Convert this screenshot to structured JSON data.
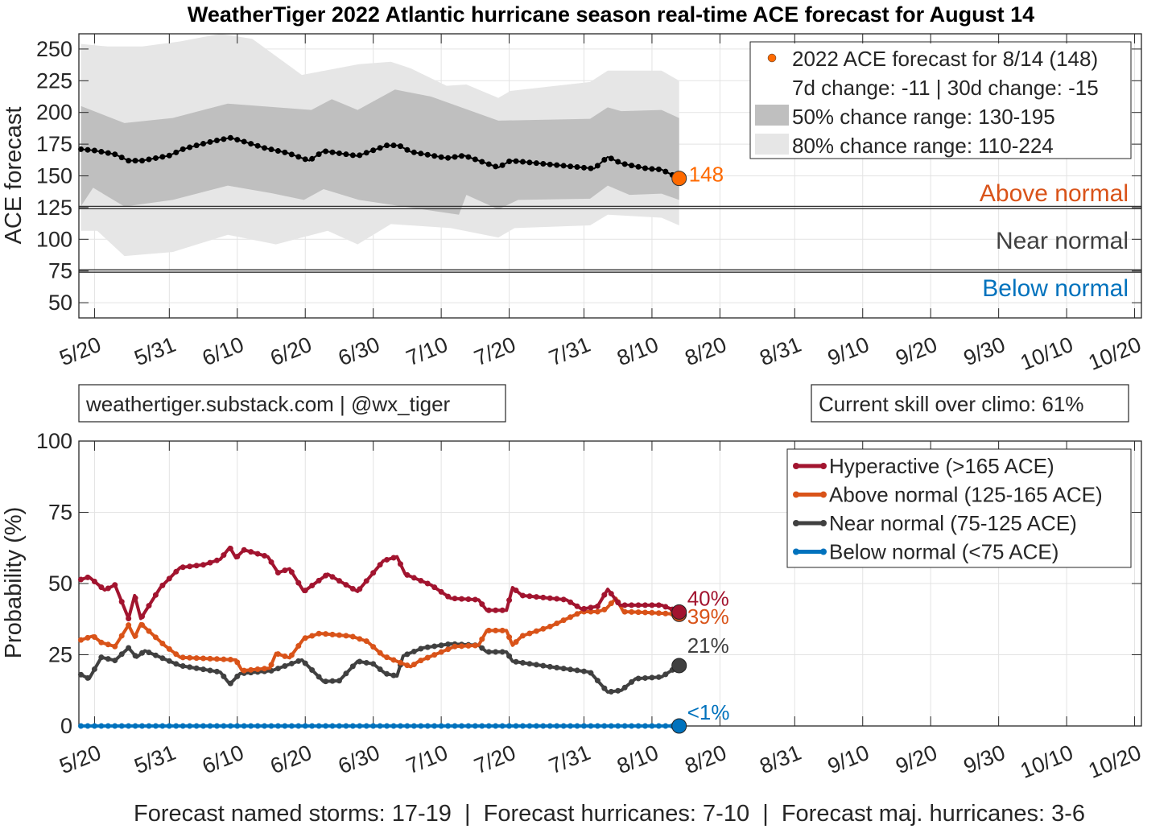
{
  "title": "WeatherTiger 2022 Atlantic hurricane season real-time ACE forecast for August 14",
  "footer": "Forecast named storms: 17-19  |  Forecast hurricanes: 7-10  |  Forecast maj. hurricanes: 3-6",
  "info_left": "weathertiger.substack.com | @wx_tiger",
  "info_right": "Current skill over climo: 61%",
  "colors": {
    "hyper": "#A2142F",
    "above": "#D95319",
    "near": "#404040",
    "below": "#0072BD",
    "marker": "#FF6A00",
    "band50": "#BFBFBF",
    "band80": "#E6E6E6"
  },
  "chart_data": [
    {
      "type": "line",
      "name": "ace_forecast",
      "ylabel": "ACE forecast",
      "ylim": [
        38,
        262
      ],
      "yticks": [
        50,
        75,
        100,
        125,
        150,
        175,
        200,
        225,
        250
      ],
      "x_units": "days since 5/20",
      "xlim": [
        -2.3,
        154
      ],
      "xticks": [
        0,
        11,
        21,
        31,
        41,
        51,
        61,
        72,
        82,
        92,
        103,
        113,
        123,
        133,
        143,
        153
      ],
      "xticklabels": [
        "5/20",
        "5/31",
        "6/10",
        "6/20",
        "6/30",
        "7/10",
        "7/20",
        "7/31",
        "8/10",
        "8/20",
        "8/31",
        "9/10",
        "9/20",
        "9/30",
        "10/10",
        "10/20"
      ],
      "thresholds": [
        125,
        75
      ],
      "regions": {
        "above": "Above normal",
        "near": "Near normal",
        "below": "Below normal"
      },
      "final": {
        "day": 86,
        "value": 148,
        "label": "148"
      },
      "legend": [
        "2022 ACE forecast for 8/14 (148)",
        "7d change: -11 | 30d change: -15",
        "50% chance range: 130-195",
        "80% chance range: 110-224"
      ],
      "mean": [
        [
          -2,
          171
        ],
        [
          0,
          170
        ],
        [
          3,
          167
        ],
        [
          5,
          162
        ],
        [
          7,
          162
        ],
        [
          11,
          166
        ],
        [
          13,
          171
        ],
        [
          15,
          174
        ],
        [
          17.6,
          177.5
        ],
        [
          20,
          180
        ],
        [
          22,
          177
        ],
        [
          25,
          172
        ],
        [
          28.4,
          168
        ],
        [
          31.6,
          162
        ],
        [
          33.7,
          169.6
        ],
        [
          38.7,
          165.7
        ],
        [
          43,
          174
        ],
        [
          44.8,
          174
        ],
        [
          46.5,
          169
        ],
        [
          51.8,
          164
        ],
        [
          54.4,
          166
        ],
        [
          59.4,
          156.6
        ],
        [
          61.2,
          162
        ],
        [
          67,
          159
        ],
        [
          73.5,
          155.7
        ],
        [
          75.5,
          165
        ],
        [
          77.5,
          159.8
        ],
        [
          81.3,
          155.7
        ],
        [
          83.4,
          155
        ],
        [
          86,
          148
        ]
      ],
      "upper80": [
        [
          -2,
          254
        ],
        [
          2,
          252
        ],
        [
          7,
          252
        ],
        [
          12.6,
          256
        ],
        [
          18.5,
          262
        ],
        [
          23.2,
          258
        ],
        [
          30.5,
          229.6
        ],
        [
          38.9,
          238
        ],
        [
          43.6,
          240
        ],
        [
          46.5,
          234.8
        ],
        [
          51.8,
          221
        ],
        [
          54.7,
          222
        ],
        [
          59.4,
          211.5
        ],
        [
          61.2,
          217
        ],
        [
          72.9,
          224
        ],
        [
          75.5,
          233
        ],
        [
          83.4,
          233
        ],
        [
          86,
          225
        ]
      ],
      "lower80": [
        [
          -2,
          106.7
        ],
        [
          0.4,
          106.7
        ],
        [
          4.4,
          86.8
        ],
        [
          11.5,
          90
        ],
        [
          19.6,
          103.5
        ],
        [
          26.7,
          96
        ],
        [
          34.3,
          106.7
        ],
        [
          38.7,
          96
        ],
        [
          43.6,
          112
        ],
        [
          52.4,
          108.8
        ],
        [
          59.4,
          101.4
        ],
        [
          61.8,
          108.8
        ],
        [
          72.9,
          111
        ],
        [
          75.5,
          119.4
        ],
        [
          83.4,
          117
        ],
        [
          86,
          111
        ]
      ],
      "upper50": [
        [
          -2,
          205
        ],
        [
          4.4,
          191.6
        ],
        [
          11.5,
          195.6
        ],
        [
          19.6,
          207
        ],
        [
          31.9,
          202
        ],
        [
          34.9,
          210.5
        ],
        [
          38.7,
          202
        ],
        [
          44.2,
          218
        ],
        [
          49.5,
          212.5
        ],
        [
          59.4,
          193.5
        ],
        [
          72.9,
          195
        ],
        [
          75.5,
          204
        ],
        [
          77.5,
          201
        ],
        [
          83.4,
          202
        ],
        [
          86,
          195.6
        ]
      ],
      "lower50": [
        [
          -2,
          126
        ],
        [
          -0.2,
          140.6
        ],
        [
          4.4,
          125.8
        ],
        [
          11.5,
          131
        ],
        [
          19.6,
          142.3
        ],
        [
          26.1,
          136.3
        ],
        [
          30.8,
          131
        ],
        [
          33.7,
          139.5
        ],
        [
          38.9,
          131
        ],
        [
          45.4,
          125.8
        ],
        [
          53.6,
          119.4
        ],
        [
          54.7,
          135
        ],
        [
          59.4,
          123.6
        ],
        [
          62.3,
          131
        ],
        [
          72.9,
          132
        ],
        [
          75.5,
          142.3
        ],
        [
          78.7,
          135
        ],
        [
          83.4,
          136
        ],
        [
          86,
          131
        ]
      ]
    },
    {
      "type": "line",
      "name": "category_probabilities",
      "ylabel": "Probability (%)",
      "ylim": [
        0,
        100
      ],
      "yticks": [
        0,
        25,
        50,
        75,
        100
      ],
      "legend_placement": "top-right",
      "series": [
        {
          "key": "hyper",
          "name": "Hyperactive (>165 ACE)",
          "end_label": "40%",
          "values": [
            [
              -2,
              51.4
            ],
            [
              -0.8,
              52.3
            ],
            [
              1.5,
              47.7
            ],
            [
              3,
              49.5
            ],
            [
              5,
              37.7
            ],
            [
              5.9,
              45.8
            ],
            [
              6.8,
              37.7
            ],
            [
              9.7,
              48.6
            ],
            [
              12.6,
              55.6
            ],
            [
              16.1,
              56.6
            ],
            [
              18.5,
              58.5
            ],
            [
              19.9,
              62.7
            ],
            [
              20.8,
              59
            ],
            [
              22,
              61.8
            ],
            [
              25.5,
              59.4
            ],
            [
              27,
              53.8
            ],
            [
              28.7,
              55.2
            ],
            [
              30.8,
              47.2
            ],
            [
              34.3,
              53.3
            ],
            [
              38.7,
              47.2
            ],
            [
              42.5,
              58
            ],
            [
              44.5,
              59.4
            ],
            [
              45.7,
              53.3
            ],
            [
              49.5,
              49.5
            ],
            [
              52.4,
              44.8
            ],
            [
              56.5,
              44.3
            ],
            [
              57.7,
              40.6
            ],
            [
              60.6,
              40.6
            ],
            [
              61.5,
              48.6
            ],
            [
              62.9,
              45.8
            ],
            [
              69.4,
              44.3
            ],
            [
              71.7,
              41
            ],
            [
              74,
              42
            ],
            [
              75.5,
              48
            ],
            [
              77.3,
              42.4
            ],
            [
              83.4,
              42.4
            ],
            [
              86,
              40
            ]
          ]
        },
        {
          "key": "above",
          "name": "Above normal (125-165 ACE)",
          "end_label": "39%",
          "values": [
            [
              -2,
              30.2
            ],
            [
              -0.2,
              31.6
            ],
            [
              1,
              29.3
            ],
            [
              3,
              27.9
            ],
            [
              5,
              35.4
            ],
            [
              5.9,
              31.1
            ],
            [
              6.8,
              35.9
            ],
            [
              10.3,
              28.3
            ],
            [
              12.6,
              24.1
            ],
            [
              20.8,
              23.2
            ],
            [
              21.7,
              19.4
            ],
            [
              25.8,
              20.3
            ],
            [
              26.7,
              25.5
            ],
            [
              28.7,
              23.9
            ],
            [
              30.8,
              30.7
            ],
            [
              33.1,
              32.5
            ],
            [
              37.8,
              31.5
            ],
            [
              40.1,
              29.7
            ],
            [
              42.5,
              24.6
            ],
            [
              46.5,
              20.8
            ],
            [
              47.7,
              22.7
            ],
            [
              53,
              27.9
            ],
            [
              56.5,
              28.3
            ],
            [
              57.7,
              33.5
            ],
            [
              60.6,
              33.5
            ],
            [
              61.5,
              28.3
            ],
            [
              62.9,
              31.6
            ],
            [
              67,
              34.9
            ],
            [
              71.7,
              40.1
            ],
            [
              74,
              40.1
            ],
            [
              75.2,
              41
            ],
            [
              76.7,
              44.8
            ],
            [
              77.8,
              40.1
            ],
            [
              81.6,
              39.8
            ],
            [
              86,
              39.2
            ]
          ]
        },
        {
          "key": "near",
          "name": "Near normal (75-125 ACE)",
          "end_label": "21%",
          "values": [
            [
              -2,
              18
            ],
            [
              -0.8,
              16.6
            ],
            [
              1,
              24.1
            ],
            [
              3,
              23
            ],
            [
              5,
              27.4
            ],
            [
              6.2,
              24.1
            ],
            [
              7.4,
              26.4
            ],
            [
              12.6,
              21.2
            ],
            [
              18.5,
              18.9
            ],
            [
              19.9,
              14.7
            ],
            [
              21.4,
              18.4
            ],
            [
              26.1,
              19.4
            ],
            [
              30.5,
              23.2
            ],
            [
              33.7,
              15.6
            ],
            [
              36,
              15.9
            ],
            [
              38.7,
              22.7
            ],
            [
              41,
              21.8
            ],
            [
              42.8,
              18.4
            ],
            [
              44.5,
              17.5
            ],
            [
              45.4,
              24.6
            ],
            [
              48.3,
              27.4
            ],
            [
              52.4,
              28.8
            ],
            [
              56.5,
              28.3
            ],
            [
              57.7,
              26
            ],
            [
              60.6,
              26
            ],
            [
              61.5,
              22.7
            ],
            [
              67,
              20.8
            ],
            [
              72.9,
              18.9
            ],
            [
              75.5,
              11.9
            ],
            [
              77.5,
              12.5
            ],
            [
              79.6,
              16.6
            ],
            [
              83.4,
              17.2
            ],
            [
              86,
              21.2
            ]
          ]
        },
        {
          "key": "below",
          "name": "Below normal (<75 ACE)",
          "end_label": "<1%",
          "values": [
            [
              -2,
              0
            ],
            [
              86,
              0
            ]
          ]
        }
      ]
    }
  ]
}
